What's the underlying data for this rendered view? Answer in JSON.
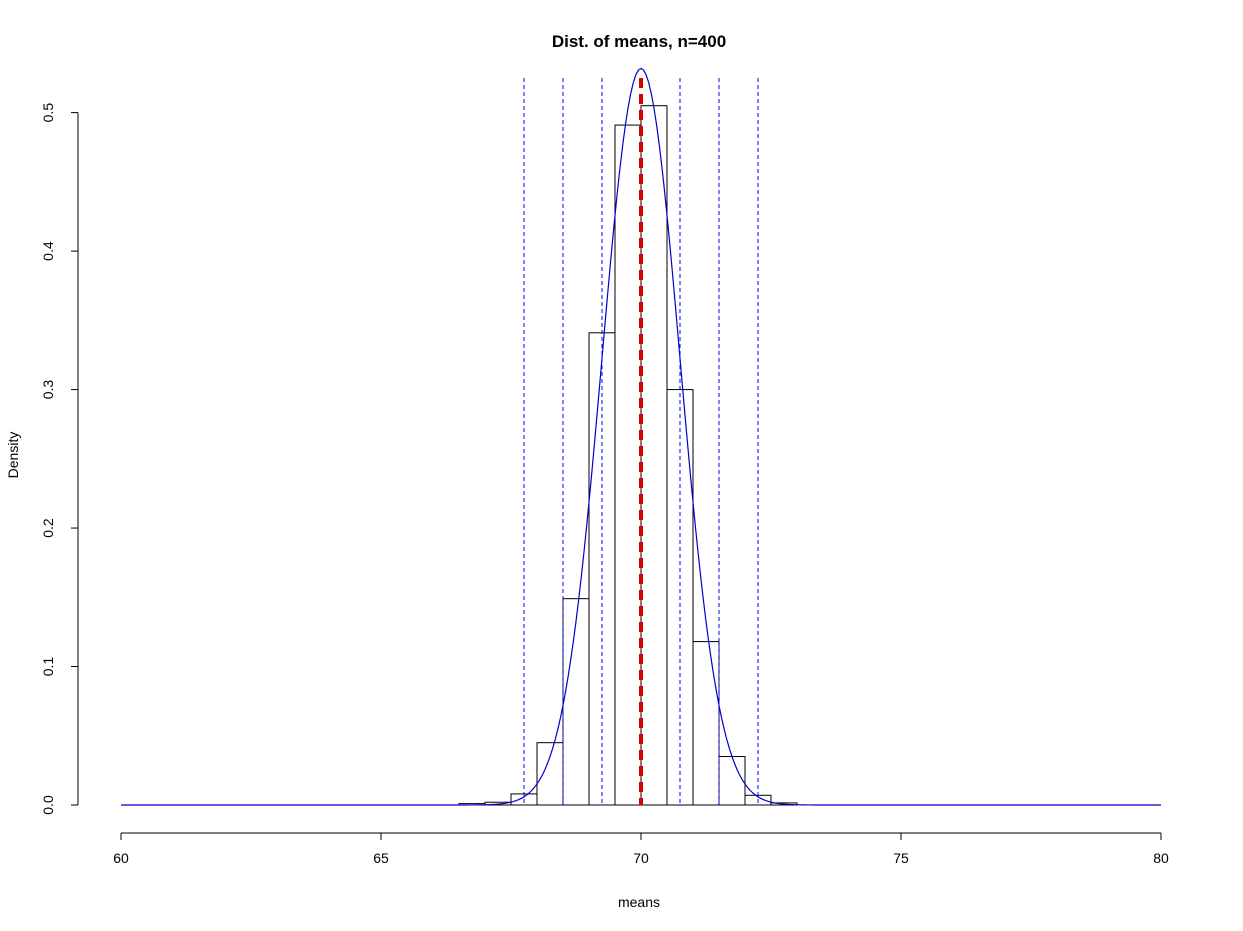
{
  "chart_data": {
    "type": "bar",
    "title": "Dist. of means, n=400",
    "xlabel": "means",
    "ylabel": "Density",
    "xlim": [
      60,
      80
    ],
    "ylim": [
      0,
      0.525
    ],
    "x_ticks": [
      60,
      65,
      70,
      75,
      80
    ],
    "y_ticks": [
      0.0,
      0.1,
      0.2,
      0.3,
      0.4,
      0.5
    ],
    "y_tick_labels": [
      "0.0",
      "0.1",
      "0.2",
      "0.3",
      "0.4",
      "0.5"
    ],
    "histogram": {
      "bin_width": 0.5,
      "bins": [
        {
          "start": 66.5,
          "density": 0.001
        },
        {
          "start": 67.0,
          "density": 0.002
        },
        {
          "start": 67.5,
          "density": 0.008
        },
        {
          "start": 68.0,
          "density": 0.045
        },
        {
          "start": 68.5,
          "density": 0.149
        },
        {
          "start": 69.0,
          "density": 0.341
        },
        {
          "start": 69.5,
          "density": 0.491
        },
        {
          "start": 70.0,
          "density": 0.505
        },
        {
          "start": 70.5,
          "density": 0.3
        },
        {
          "start": 71.0,
          "density": 0.118
        },
        {
          "start": 71.5,
          "density": 0.035
        },
        {
          "start": 72.0,
          "density": 0.007
        },
        {
          "start": 72.5,
          "density": 0.0015
        }
      ]
    },
    "density_curve": {
      "distribution": "normal",
      "mean": 70.0,
      "sd": 0.75,
      "color": "#0000cc"
    },
    "reference_lines": {
      "mean": {
        "x": 70.0,
        "color": "#dd0000",
        "style": "dashed-thick"
      },
      "sd_lines": {
        "x": [
          67.75,
          68.5,
          69.25,
          70.75,
          71.5,
          72.25
        ],
        "color": "#0000ff",
        "style": "dashed"
      }
    },
    "grid": false,
    "legend": "none"
  }
}
